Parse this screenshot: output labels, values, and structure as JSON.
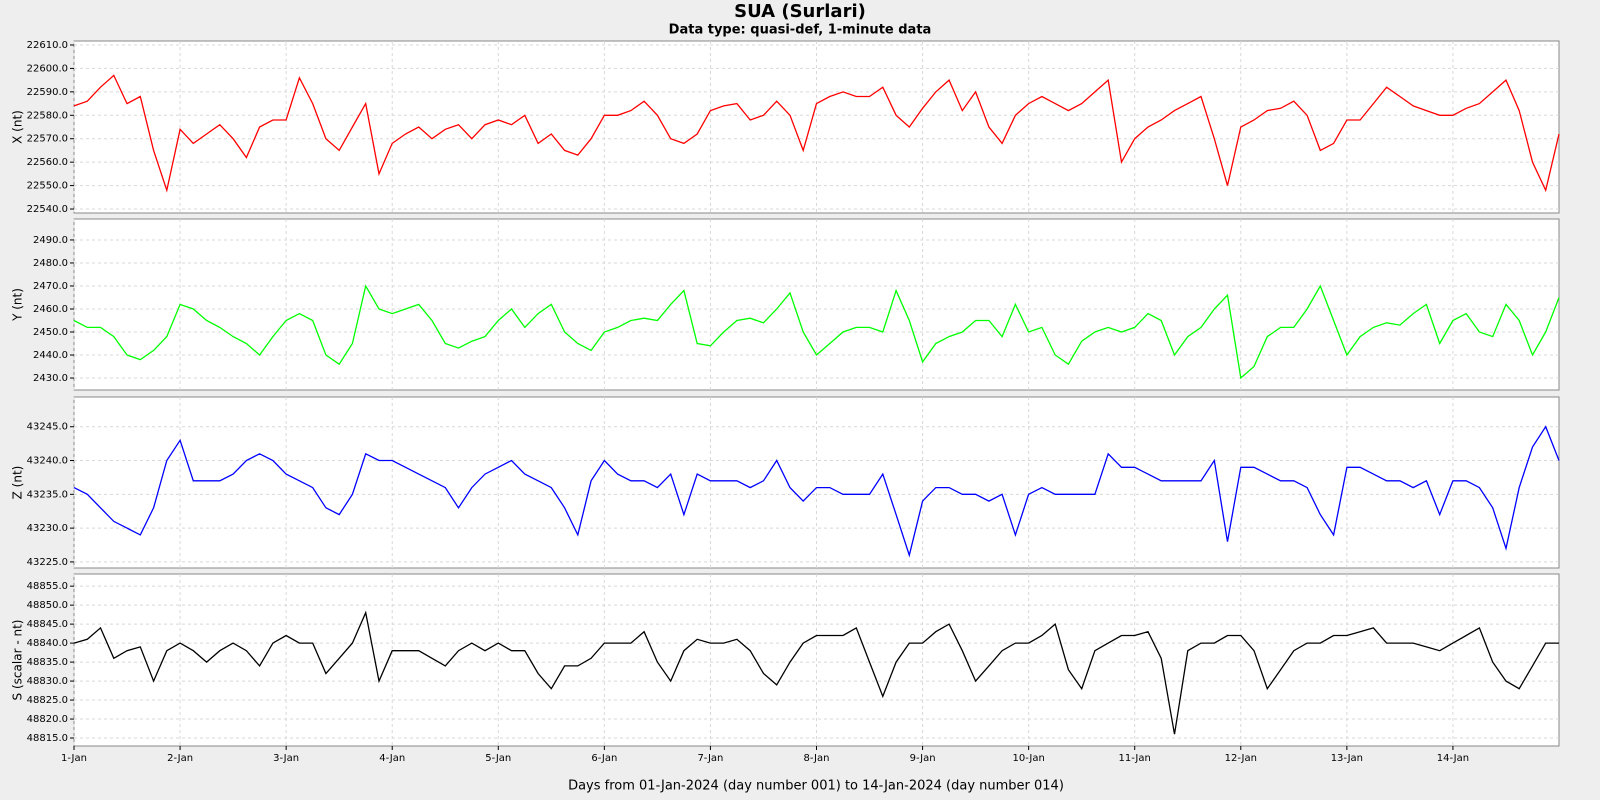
{
  "chart_data": {
    "type": "line",
    "title": "SUA (Surlari)",
    "subtitle": "Data type: quasi-def, 1-minute data",
    "xlabel": "Days from 01-Jan-2024 (day number 001) to 14-Jan-2024 (day number 014)",
    "grid": true,
    "xlim": [
      0,
      14
    ],
    "xticks": [
      {
        "value": 0,
        "label": "1-Jan"
      },
      {
        "value": 1,
        "label": "2-Jan"
      },
      {
        "value": 2,
        "label": "3-Jan"
      },
      {
        "value": 3,
        "label": "4-Jan"
      },
      {
        "value": 4,
        "label": "5-Jan"
      },
      {
        "value": 5,
        "label": "6-Jan"
      },
      {
        "value": 6,
        "label": "7-Jan"
      },
      {
        "value": 7,
        "label": "8-Jan"
      },
      {
        "value": 8,
        "label": "9-Jan"
      },
      {
        "value": 9,
        "label": "10-Jan"
      },
      {
        "value": 10,
        "label": "11-Jan"
      },
      {
        "value": 11,
        "label": "12-Jan"
      },
      {
        "value": 12,
        "label": "13-Jan"
      },
      {
        "value": 13,
        "label": "14-Jan"
      }
    ],
    "x": [
      0,
      0.125,
      0.25,
      0.375,
      0.5,
      0.625,
      0.75,
      0.875,
      1,
      1.125,
      1.25,
      1.375,
      1.5,
      1.625,
      1.75,
      1.875,
      2,
      2.125,
      2.25,
      2.375,
      2.5,
      2.625,
      2.75,
      2.875,
      3,
      3.125,
      3.25,
      3.375,
      3.5,
      3.625,
      3.75,
      3.875,
      4,
      4.125,
      4.25,
      4.375,
      4.5,
      4.625,
      4.75,
      4.875,
      5,
      5.125,
      5.25,
      5.375,
      5.5,
      5.625,
      5.75,
      5.875,
      6,
      6.125,
      6.25,
      6.375,
      6.5,
      6.625,
      6.75,
      6.875,
      7,
      7.125,
      7.25,
      7.375,
      7.5,
      7.625,
      7.75,
      7.875,
      8,
      8.125,
      8.25,
      8.375,
      8.5,
      8.625,
      8.75,
      8.875,
      9,
      9.125,
      9.25,
      9.375,
      9.5,
      9.625,
      9.75,
      9.875,
      10,
      10.125,
      10.25,
      10.375,
      10.5,
      10.625,
      10.75,
      10.875,
      11,
      11.125,
      11.25,
      11.375,
      11.5,
      11.625,
      11.75,
      11.875,
      12,
      12.125,
      12.25,
      12.375,
      12.5,
      12.625,
      12.75,
      12.875,
      13,
      13.125,
      13.25,
      13.375,
      13.5,
      13.625,
      13.75,
      13.875,
      14
    ],
    "panels": [
      {
        "ylabel": "X (nt)",
        "color": "#ff0000",
        "ylim": [
          22538.3,
          22611.7
        ],
        "yticks": [
          {
            "value": 22540,
            "label": "22540.0"
          },
          {
            "value": 22550,
            "label": "22550.0"
          },
          {
            "value": 22560,
            "label": "22560.0"
          },
          {
            "value": 22570,
            "label": "22570.0"
          },
          {
            "value": 22580,
            "label": "22580.0"
          },
          {
            "value": 22590,
            "label": "22590.0"
          },
          {
            "value": 22600,
            "label": "22600.0"
          },
          {
            "value": 22610,
            "label": "22610.0"
          }
        ],
        "values": [
          22584,
          22586,
          22592,
          22597,
          22585,
          22588,
          22565,
          22548,
          22574,
          22568,
          22572,
          22576,
          22570,
          22562,
          22575,
          22578,
          22578,
          22596,
          22585,
          22570,
          22565,
          22575,
          22585,
          22555,
          22568,
          22572,
          22575,
          22570,
          22574,
          22576,
          22570,
          22576,
          22578,
          22576,
          22580,
          22568,
          22572,
          22565,
          22563,
          22570,
          22580,
          22580,
          22582,
          22586,
          22580,
          22570,
          22568,
          22572,
          22582,
          22584,
          22585,
          22578,
          22580,
          22586,
          22580,
          22565,
          22585,
          22588,
          22590,
          22588,
          22588,
          22592,
          22580,
          22575,
          22583,
          22590,
          22595,
          22582,
          22590,
          22575,
          22568,
          22580,
          22585,
          22588,
          22585,
          22582,
          22585,
          22590,
          22595,
          22560,
          22570,
          22575,
          22578,
          22582,
          22585,
          22588,
          22570,
          22550,
          22575,
          22578,
          22582,
          22583,
          22586,
          22580,
          22565,
          22568,
          22578,
          22578,
          22585,
          22592,
          22588,
          22584,
          22582,
          22580,
          22580,
          22583,
          22585,
          22590,
          22595,
          22582,
          22560,
          22548,
          22572
        ]
      },
      {
        "ylabel": "Y (nt)",
        "color": "#00ff00",
        "ylim": [
          2424.8,
          2499.1
        ],
        "yticks": [
          {
            "value": 2430,
            "label": "2430.0"
          },
          {
            "value": 2440,
            "label": "2440.0"
          },
          {
            "value": 2450,
            "label": "2450.0"
          },
          {
            "value": 2460,
            "label": "2460.0"
          },
          {
            "value": 2470,
            "label": "2470.0"
          },
          {
            "value": 2480,
            "label": "2480.0"
          },
          {
            "value": 2490,
            "label": "2490.0"
          }
        ],
        "values": [
          2455,
          2452,
          2452,
          2448,
          2440,
          2438,
          2442,
          2448,
          2462,
          2460,
          2455,
          2452,
          2448,
          2445,
          2440,
          2448,
          2455,
          2458,
          2455,
          2440,
          2436,
          2445,
          2470,
          2460,
          2458,
          2460,
          2462,
          2455,
          2445,
          2443,
          2446,
          2448,
          2455,
          2460,
          2452,
          2458,
          2462,
          2450,
          2445,
          2442,
          2450,
          2452,
          2455,
          2456,
          2455,
          2462,
          2468,
          2445,
          2444,
          2450,
          2455,
          2456,
          2454,
          2460,
          2467,
          2450,
          2440,
          2445,
          2450,
          2452,
          2452,
          2450,
          2468,
          2455,
          2437,
          2445,
          2448,
          2450,
          2455,
          2455,
          2448,
          2462,
          2450,
          2452,
          2440,
          2436,
          2446,
          2450,
          2452,
          2450,
          2452,
          2458,
          2455,
          2440,
          2448,
          2452,
          2460,
          2466,
          2430,
          2435,
          2448,
          2452,
          2452,
          2460,
          2470,
          2455,
          2440,
          2448,
          2452,
          2454,
          2453,
          2458,
          2462,
          2445,
          2455,
          2458,
          2450,
          2448,
          2462,
          2455,
          2440,
          2450,
          2465
        ]
      },
      {
        "ylabel": "Z (nt)",
        "color": "#0000ff",
        "ylim": [
          43224.1,
          43249.4
        ],
        "yticks": [
          {
            "value": 43225,
            "label": "43225.0"
          },
          {
            "value": 43230,
            "label": "43230.0"
          },
          {
            "value": 43235,
            "label": "43235.0"
          },
          {
            "value": 43240,
            "label": "43240.0"
          },
          {
            "value": 43245,
            "label": "43245.0"
          }
        ],
        "values": [
          43236,
          43235,
          43233,
          43231,
          43230,
          43229,
          43233,
          43240,
          43243,
          43237,
          43237,
          43237,
          43238,
          43240,
          43241,
          43240,
          43238,
          43237,
          43236,
          43233,
          43232,
          43235,
          43241,
          43240,
          43240,
          43239,
          43238,
          43237,
          43236,
          43233,
          43236,
          43238,
          43239,
          43240,
          43238,
          43237,
          43236,
          43233,
          43229,
          43237,
          43240,
          43238,
          43237,
          43237,
          43236,
          43238,
          43232,
          43238,
          43237,
          43237,
          43237,
          43236,
          43237,
          43240,
          43236,
          43234,
          43236,
          43236,
          43235,
          43235,
          43235,
          43238,
          43232,
          43226,
          43234,
          43236,
          43236,
          43235,
          43235,
          43234,
          43235,
          43229,
          43235,
          43236,
          43235,
          43235,
          43235,
          43235,
          43241,
          43239,
          43239,
          43238,
          43237,
          43237,
          43237,
          43237,
          43240,
          43228,
          43239,
          43239,
          43238,
          43237,
          43237,
          43236,
          43232,
          43229,
          43239,
          43239,
          43238,
          43237,
          43237,
          43236,
          43237,
          43232,
          43237,
          43237,
          43236,
          43233,
          43227,
          43236,
          43242,
          43245,
          43240
        ]
      },
      {
        "ylabel": "S (scalar - nt)",
        "color": "#000000",
        "ylim": [
          48812.9,
          48858.2
        ],
        "yticks": [
          {
            "value": 48815,
            "label": "48815.0"
          },
          {
            "value": 48820,
            "label": "48820.0"
          },
          {
            "value": 48825,
            "label": "48825.0"
          },
          {
            "value": 48830,
            "label": "48830.0"
          },
          {
            "value": 48835,
            "label": "48835.0"
          },
          {
            "value": 48840,
            "label": "48840.0"
          },
          {
            "value": 48845,
            "label": "48845.0"
          },
          {
            "value": 48850,
            "label": "48850.0"
          },
          {
            "value": 48855,
            "label": "48855.0"
          }
        ],
        "values": [
          48840,
          48841,
          48844,
          48836,
          48838,
          48839,
          48830,
          48838,
          48840,
          48838,
          48835,
          48838,
          48840,
          48838,
          48834,
          48840,
          48842,
          48840,
          48840,
          48832,
          48836,
          48840,
          48848,
          48830,
          48838,
          48838,
          48838,
          48836,
          48834,
          48838,
          48840,
          48838,
          48840,
          48838,
          48838,
          48832,
          48828,
          48834,
          48834,
          48836,
          48840,
          48840,
          48840,
          48843,
          48835,
          48830,
          48838,
          48841,
          48840,
          48840,
          48841,
          48838,
          48832,
          48829,
          48835,
          48840,
          48842,
          48842,
          48842,
          48844,
          48835,
          48826,
          48835,
          48840,
          48840,
          48843,
          48845,
          48838,
          48830,
          48834,
          48838,
          48840,
          48840,
          48842,
          48845,
          48833,
          48828,
          48838,
          48840,
          48842,
          48842,
          48843,
          48836,
          48816,
          48838,
          48840,
          48840,
          48842,
          48842,
          48838,
          48828,
          48833,
          48838,
          48840,
          48840,
          48842,
          48842,
          48843,
          48844,
          48840,
          48840,
          48840,
          48839,
          48838,
          48840,
          48842,
          48844,
          48835,
          48830,
          48828,
          48834,
          48840,
          48840
        ]
      }
    ]
  }
}
